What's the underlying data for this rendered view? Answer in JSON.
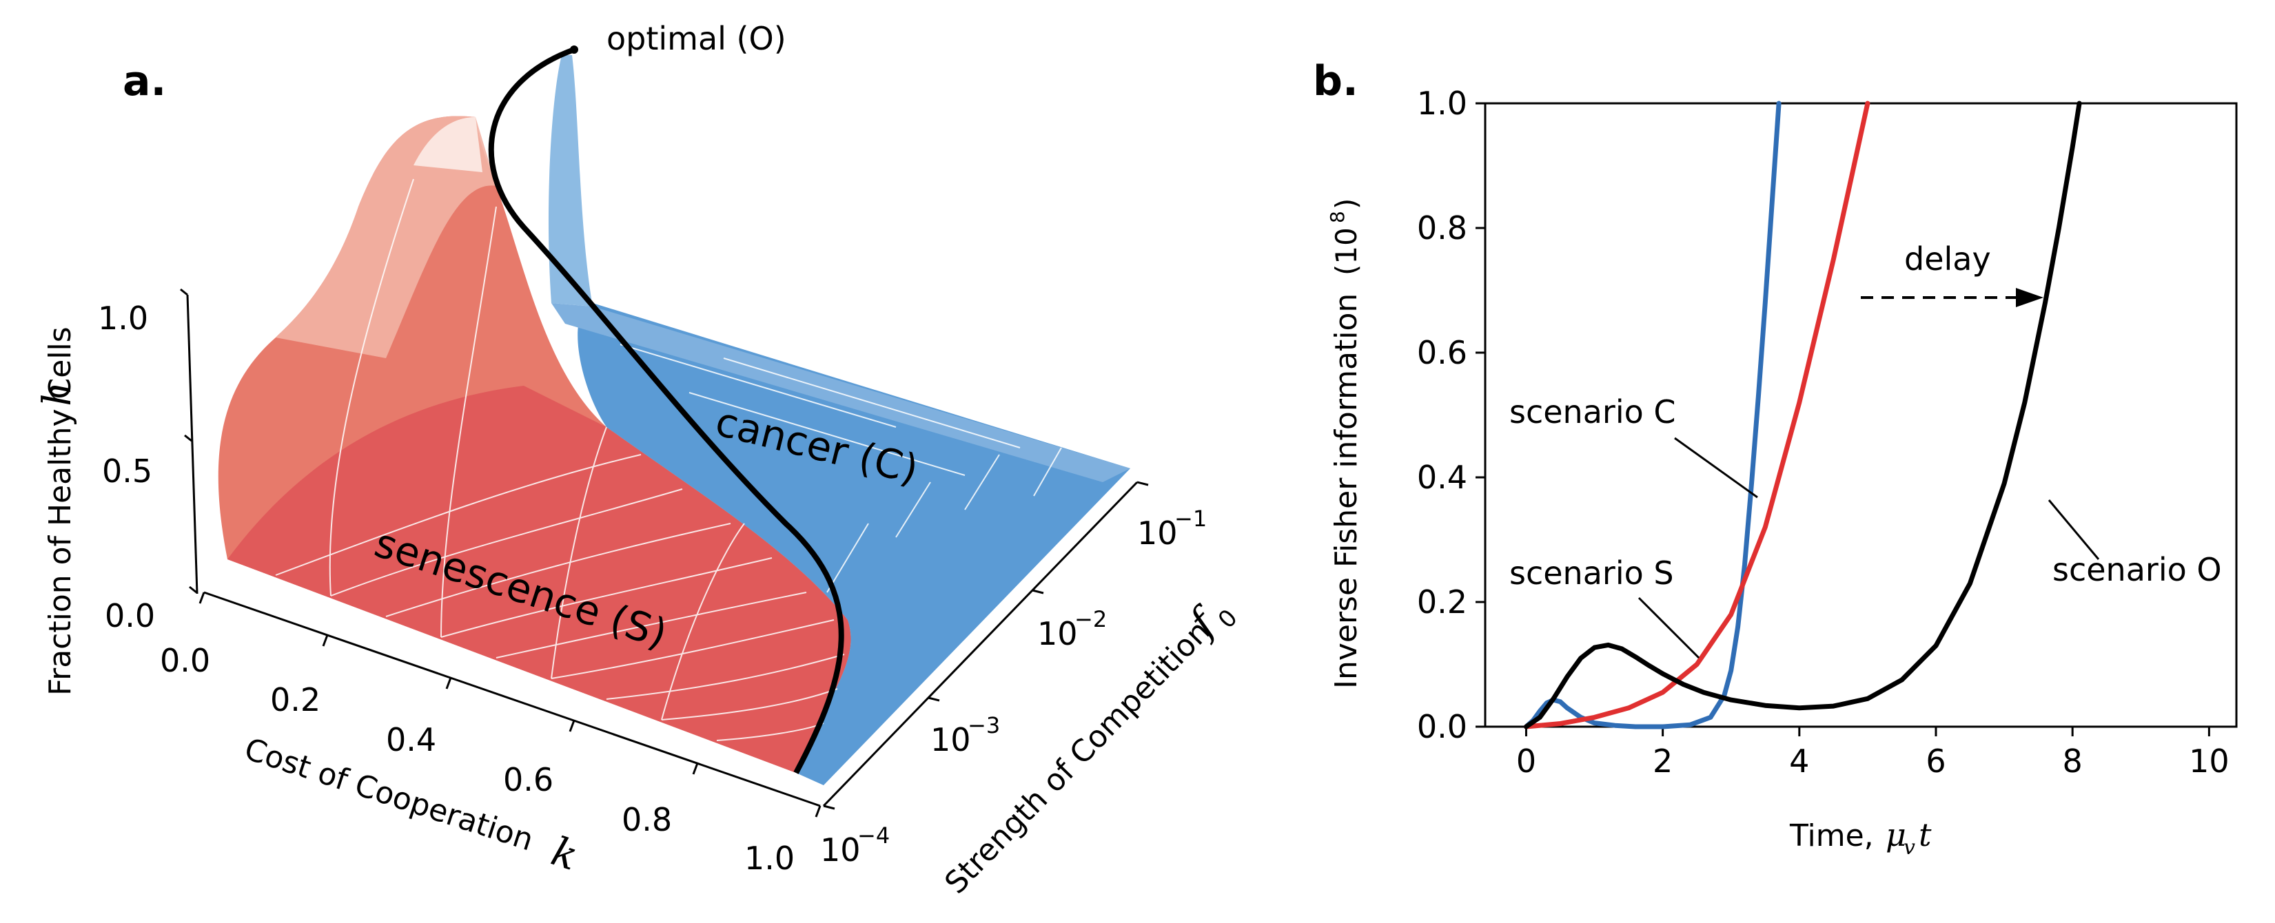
{
  "figure": {
    "panel_a_label": "a.",
    "panel_b_label": "b."
  },
  "panel_a": {
    "z_axis_label": "Fraction of Healthy Cells",
    "z_axis_symbol": "h",
    "x_axis_label": "Cost of Cooperation",
    "x_axis_symbol": "k",
    "y_axis_label": "Strength of Competition",
    "y_axis_symbol": "f",
    "y_axis_symbol_sub": "0",
    "z_ticks": [
      "0.0",
      "0.5",
      "1.0"
    ],
    "x_ticks": [
      "0.0",
      "0.2",
      "0.4",
      "0.6",
      "0.8",
      "1.0"
    ],
    "y_tick_base": "10",
    "y_tick_exponents": [
      "−4",
      "−3",
      "−2",
      "−1"
    ],
    "regions": {
      "optimal": "optimal (O)",
      "cancer": "cancer (C)",
      "senescence": "senescence (S)"
    },
    "colors": {
      "senescence": "#e05a5a",
      "cancer": "#5b9bd5",
      "curve": "#000000"
    }
  },
  "chart_data": {
    "type": "line",
    "title": "",
    "xlabel_text": "Time,",
    "xlabel_math": "μ",
    "xlabel_math_sub": "v",
    "xlabel_math_tail": "t",
    "ylabel_text": "Inverse Fisher information",
    "ylabel_unit_base": "(10",
    "ylabel_unit_exp": "8",
    "ylabel_unit_close": ")",
    "xlim": [
      -0.6,
      10.4
    ],
    "ylim": [
      0.0,
      1.0
    ],
    "x_ticks": [
      0,
      2,
      4,
      6,
      8,
      10
    ],
    "x_tick_labels": [
      "0",
      "2",
      "4",
      "6",
      "8",
      "10"
    ],
    "y_ticks": [
      0.0,
      0.2,
      0.4,
      0.6,
      0.8,
      1.0
    ],
    "y_tick_labels": [
      "0.0",
      "0.2",
      "0.4",
      "0.6",
      "0.8",
      "1.0"
    ],
    "series": [
      {
        "name": "scenario C",
        "color": "#2f6db5",
        "x": [
          0.0,
          0.1,
          0.2,
          0.3,
          0.4,
          0.5,
          0.6,
          0.8,
          1.0,
          1.3,
          1.6,
          2.0,
          2.4,
          2.7,
          2.9,
          3.0,
          3.1,
          3.2,
          3.3,
          3.4,
          3.5,
          3.6,
          3.7
        ],
        "y": [
          0.0,
          0.01,
          0.025,
          0.038,
          0.043,
          0.04,
          0.03,
          0.015,
          0.006,
          0.002,
          0.0,
          0.0,
          0.003,
          0.015,
          0.05,
          0.09,
          0.16,
          0.26,
          0.39,
          0.53,
          0.68,
          0.84,
          1.0
        ]
      },
      {
        "name": "scenario S",
        "color": "#e03030",
        "x": [
          0.0,
          0.5,
          1.0,
          1.5,
          2.0,
          2.5,
          3.0,
          3.5,
          4.0,
          4.5,
          5.0
        ],
        "y": [
          0.0,
          0.005,
          0.015,
          0.03,
          0.055,
          0.1,
          0.18,
          0.32,
          0.52,
          0.75,
          1.0
        ]
      },
      {
        "name": "scenario O",
        "color": "#000000",
        "x": [
          0.0,
          0.2,
          0.4,
          0.6,
          0.8,
          1.0,
          1.2,
          1.4,
          1.6,
          1.8,
          2.0,
          2.3,
          2.6,
          3.0,
          3.5,
          4.0,
          4.5,
          5.0,
          5.5,
          6.0,
          6.5,
          7.0,
          7.3,
          7.6,
          7.8,
          8.0,
          8.1
        ],
        "y": [
          0.0,
          0.015,
          0.045,
          0.08,
          0.11,
          0.127,
          0.131,
          0.125,
          0.112,
          0.098,
          0.085,
          0.068,
          0.055,
          0.043,
          0.034,
          0.03,
          0.033,
          0.045,
          0.075,
          0.13,
          0.23,
          0.39,
          0.52,
          0.68,
          0.8,
          0.93,
          1.0
        ]
      }
    ],
    "annotations": {
      "delay_label": "delay",
      "scenario_C_label": "scenario C",
      "scenario_S_label": "scenario S",
      "scenario_O_label": "scenario O"
    }
  }
}
